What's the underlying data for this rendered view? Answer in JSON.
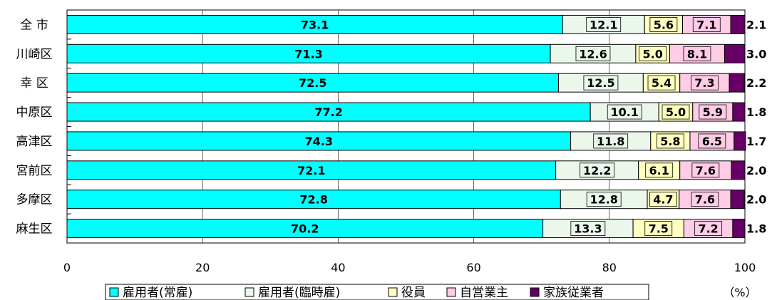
{
  "chart_data": {
    "type": "bar",
    "orientation": "horizontal",
    "stacked": true,
    "categories": [
      "全 市",
      "川崎区",
      "幸 区",
      "中原区",
      "高津区",
      "宮前区",
      "多摩区",
      "麻生区"
    ],
    "series": [
      {
        "name": "雇用者(常雇)",
        "color": "#00ffff",
        "values": [
          73.1,
          71.3,
          72.5,
          77.2,
          74.3,
          72.1,
          72.8,
          70.2
        ]
      },
      {
        "name": "雇用者(臨時雇)",
        "color": "#eaf7ea",
        "values": [
          12.1,
          12.6,
          12.5,
          10.1,
          11.8,
          12.2,
          12.8,
          13.3
        ]
      },
      {
        "name": "役員",
        "color": "#ffffc0",
        "values": [
          5.6,
          5.0,
          5.4,
          5.0,
          5.8,
          6.1,
          4.7,
          7.5
        ]
      },
      {
        "name": "自営業主",
        "color": "#ffcce6",
        "values": [
          7.1,
          8.1,
          7.3,
          5.9,
          6.5,
          7.6,
          7.6,
          7.2
        ]
      },
      {
        "name": "家族従業者",
        "color": "#660066",
        "values": [
          2.1,
          3.0,
          2.2,
          1.8,
          1.7,
          2.0,
          2.0,
          1.8
        ]
      }
    ],
    "xlim": [
      0,
      100
    ],
    "xticks": [
      "0",
      "20",
      "40",
      "60",
      "80",
      "100"
    ],
    "unit_label": "（%）",
    "legend_position": "bottom",
    "grid": true
  }
}
